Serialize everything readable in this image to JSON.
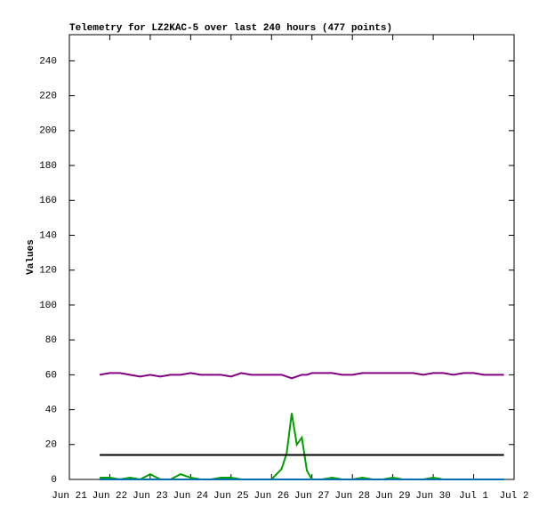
{
  "chart_data": {
    "type": "line",
    "title": "Telemetry for LZ2KAC-5 over last 240 hours (477 points)",
    "y_label": "Values",
    "x": [
      21.75,
      22,
      22.25,
      22.5,
      22.75,
      23,
      23.25,
      23.5,
      23.75,
      24,
      24.25,
      24.5,
      24.75,
      25,
      25.25,
      25.5,
      25.75,
      26,
      26.25,
      26.375,
      26.5,
      26.625,
      26.75,
      26.875,
      27,
      27.25,
      27.5,
      27.75,
      28,
      28.25,
      28.5,
      28.75,
      29,
      29.25,
      29.5,
      29.75,
      30,
      30.25,
      30.5,
      30.75,
      31,
      31.25,
      31.5,
      31.75
    ],
    "series": [
      {
        "color": "#800080",
        "values": [
          60,
          61,
          61,
          60,
          59,
          60,
          59,
          60,
          60,
          61,
          60,
          60,
          60,
          59,
          61,
          60,
          60,
          60,
          60,
          59,
          58,
          59,
          60,
          60,
          61,
          61,
          61,
          60,
          60,
          61,
          61,
          61,
          61,
          61,
          61,
          60,
          61,
          61,
          60,
          61,
          61,
          60,
          60,
          60
        ]
      },
      {
        "color": "#00a000",
        "values": [
          1,
          1,
          0,
          1,
          0,
          3,
          0,
          0,
          3,
          1,
          0,
          0,
          1,
          1,
          0,
          0,
          0,
          0,
          6,
          15,
          38,
          20,
          24,
          5,
          0,
          0,
          1,
          0,
          0,
          1,
          0,
          0,
          1,
          0,
          0,
          0,
          1,
          0,
          0,
          0,
          0,
          0,
          0,
          0
        ]
      },
      {
        "color": "#000000",
        "values": [
          14,
          14,
          14,
          14,
          14,
          14,
          14,
          14,
          14,
          14,
          14,
          14,
          14,
          14,
          14,
          14,
          14,
          14,
          14,
          14,
          14,
          14,
          14,
          14,
          14,
          14,
          14,
          14,
          14,
          14,
          14,
          14,
          14,
          14,
          14,
          14,
          14,
          14,
          14,
          14,
          14,
          14,
          14,
          14
        ]
      },
      {
        "color": "#0070b0",
        "values": [
          0,
          0,
          0,
          0,
          0,
          0,
          0,
          0,
          0,
          0,
          0,
          0,
          0,
          0,
          0,
          0,
          0,
          0,
          0,
          0,
          0,
          0,
          0,
          0,
          0,
          0,
          0,
          0,
          0,
          0,
          0,
          0,
          0,
          0,
          0,
          0,
          0,
          0,
          0,
          0,
          0,
          0,
          0,
          0
        ]
      }
    ],
    "xlim": [
      21,
      32
    ],
    "xticks": [
      {
        "value": 21,
        "label": "Jun 21"
      },
      {
        "value": 22,
        "label": "Jun 22"
      },
      {
        "value": 23,
        "label": "Jun 23"
      },
      {
        "value": 24,
        "label": "Jun 24"
      },
      {
        "value": 25,
        "label": "Jun 25"
      },
      {
        "value": 26,
        "label": "Jun 26"
      },
      {
        "value": 27,
        "label": "Jun 27"
      },
      {
        "value": 28,
        "label": "Jun 28"
      },
      {
        "value": 29,
        "label": "Jun 29"
      },
      {
        "value": 30,
        "label": "Jun 30"
      },
      {
        "value": 31,
        "label": "Jul 1"
      },
      {
        "value": 32,
        "label": "Jul 2"
      }
    ],
    "ylim": [
      0,
      255
    ],
    "yticks": [
      0,
      20,
      40,
      60,
      80,
      100,
      120,
      140,
      160,
      180,
      200,
      220,
      240
    ]
  }
}
